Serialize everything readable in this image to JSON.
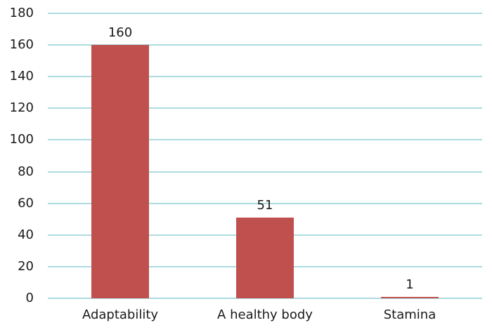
{
  "chart_data": {
    "type": "bar",
    "title": "",
    "xlabel": "",
    "ylabel": "",
    "categories": [
      "Adaptability",
      "A healthy body",
      "Stamina"
    ],
    "values": [
      160,
      51,
      1
    ],
    "data_labels": [
      "160",
      "51",
      "1"
    ],
    "ylim": [
      0,
      180
    ],
    "ytick_interval": 20,
    "yticks": [
      0,
      20,
      40,
      60,
      80,
      100,
      120,
      140,
      160,
      180
    ],
    "grid": "horizontal",
    "legend": "none",
    "axis_lines": "none",
    "bar_color": "#C0504D",
    "gridline_color": "#ACDCDF",
    "text_color": "#1A1A1A",
    "background_color": "#FFFFFF"
  }
}
